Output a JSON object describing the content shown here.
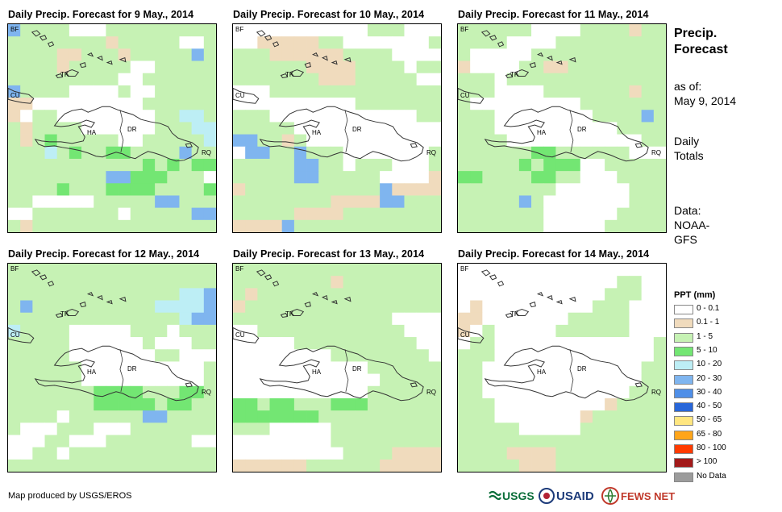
{
  "panels": [
    {
      "title": "Daily Precip. Forecast for 9 May., 2014"
    },
    {
      "title": "Daily Precip. Forecast for 10 May., 2014"
    },
    {
      "title": "Daily Precip. Forecast for 11 May., 2014"
    },
    {
      "title": "Daily Precip. Forecast for 12 May., 2014"
    },
    {
      "title": "Daily Precip. Forecast for 13 May., 2014"
    },
    {
      "title": "Daily Precip. Forecast for 14 May., 2014"
    }
  ],
  "map_labels": {
    "bf": "BF",
    "tk": "TK",
    "cu": "CU",
    "ha": "HA",
    "dr": "DR",
    "rq": "RQ"
  },
  "side": {
    "title_line1": "Precip.",
    "title_line2": "Forecast",
    "asof_line1": "as of:",
    "asof_line2": "May 9, 2014",
    "totals_line1": "Daily",
    "totals_line2": "Totals",
    "data_line1": "Data:",
    "data_line2": "NOAA-",
    "data_line3": "GFS"
  },
  "legend": {
    "title": "PPT (mm)",
    "items": [
      {
        "label": "0 - 0.1",
        "color": "#ffffff"
      },
      {
        "label": "0.1 - 1",
        "color": "#f0dbbd"
      },
      {
        "label": "1 - 5",
        "color": "#c6f2b4"
      },
      {
        "label": "5 - 10",
        "color": "#73e673"
      },
      {
        "label": "10 - 20",
        "color": "#bdeef5"
      },
      {
        "label": "20 - 30",
        "color": "#7fb5ef"
      },
      {
        "label": "30 - 40",
        "color": "#4f8fe8"
      },
      {
        "label": "40 - 50",
        "color": "#2866d9"
      },
      {
        "label": "50 - 65",
        "color": "#ffe680"
      },
      {
        "label": "65 - 80",
        "color": "#ffa51a"
      },
      {
        "label": "80 - 100",
        "color": "#ff3b00"
      },
      {
        "label": "> 100",
        "color": "#a31a1a"
      },
      {
        "label": "No Data",
        "color": "#9c9c9c"
      }
    ]
  },
  "credit": "Map produced by USGS/EROS",
  "logos": {
    "usgs": "USGS",
    "usaid": "USAID",
    "fewsnet": "FEWS NET"
  },
  "grids": [
    "BGGGGWWWGGGGGGGGGGGGGGGGGTGGGGGWWGGGGGTTGGGTGGGGGBGGGGGTGGGGGWWGGGGGGGGGGGGGGWWGGGGGGBGGGGWWWWGWWGGGGGTTWWWWWWWWWGGGGGGTWGGWWWWWWWWGGCCGGTGGGGWWWWWWGGGCCGTGMGGGGGWWGGGGGCGGGCGMGGMMGGGGBGGGGGGGGGGGGGMGMGMMGGGGGGGGBBMMMGGGWGGGGMGGGMMMMGGGGMGGWWWWWGGGGGBBGGGWWGGGGGGGWGGGGGBBGTGGGGGGGGGGGGGGGGGGGGGGGGGMGGGGMMMGGGMMMGGGGTGTGGGGGGGGGGGGGG",
    "WWWWWWWWWWWGGGWWWWWTTTTTGGWWWWWWWGGGGTTTTTTGGGGWWWWGGGGGGTTTTGGGGWGGGGGGGGGTTTGGGGGWWWWWGGGGGGGGGGGGGGWWWWWWWWWWGGGGGGGGGGWWWWWWWWWWWWGGGGGGGWWWWWWWWWWWWBBGGTGWWWWWWWWWWWWBBGGBGGGWWWWWWWGGGGGGBBGGWGGGWWWGGGGGGBBGGGGGWWWWTTGGGGGGGGGGGBTTTTGGGGGGGGTTTTBBGGGGGGGGTTTTGGGGGGGGTTTTBGGGGGGGGGGGGGGGGTGGGGBGGGGGGGGGGGGGGTGGBGGGGGGGGG",
    "GGGGGGWWWWGGGGTGGGGGGWWWWGGGGGGGGGGWWWWWGGGGGGGGGGGTWWWWGGTTGGGGGGGGGGGWGGGGGGGGGGGGGGGGWWWWGGGGGGGTGGGWWWWWWWWWGGGGGGGGGGWWWWWWWWGGGGBGGGGWWWWWWWWWWGGGGGGGGWWWWWWWWWWWGGGGGGGGMMGGGGGGWWWGGGGGMGMMMWWGGGGGMMGGGGMMGGWWWGGGGGGGGGGGGWWWWWWGGGGGGGGBGWWWWWWWGGGGGGGGGGWWWWWWGGGGGGGGGGGWWWWWGGGGGGTGGGGWWWWWWGGGGGGGGGWWWWWWGGGGGGGGGGGWWWWWGGGGGGGGG",
    "GGGGGGGGGGGGGGGGGGGGGGGGGGGGGGGGGGGGGGGGGGGGGGGGCCBGBGGGGGGGGGGCCCCBGGGGGGGGGGGGGGCBBCGGGGWWWWWGGGWGGGGGGGGWWWWWWGWWWGGGGGGGWWWWWWWGGWWWGGGGGGWWWWWWWWWWGGGGGGGWWWWWWWWWWGGGGGGGGMMMMGGGMMGGGGGGGGMMMMMGMMGGGGGGWGGGGGGBBGGGGGWWWGGGWWWGGGGGGGWWWGGWWWGGGGGGGWWWWGGWGGGGGGGGGGGGGGGGGGGGGGGGGGGGGGGGGGGGGGGGGGGGGGGGGGGGGGGGGGGGGGGGGGGGG",
    "GGGGGGGGGGGGGGGGGGGGGGGGGTGGGGGGGGGTGGGGGGGGGGGGGGGTGGGGGGGGGGGGGGGGGGGGGGGGGGGGGWWWWWWGGGGGGGGGGGGWWWWWWWWGGGGGGGGGGWWWWWWWWWWGGGGGGGGWWWWWWWWWWWWGGGGGGWWWWWWWWWWWWGGGGGWWWWWWWWWWWGGGGGGMMGMMGGGMMMGGGGGGMMMMMMMGGGGGGGGGGGGGWWWWWGGGGGGGGGWWWWWWWWGGGGGGGGGWWWWWWWWWGGGGTTTTTTTTTTGGGGGGTTTTTTTTTTTTTGGGGTTTTTTTTTTTTTTTGGTTTTTTTTTTTTTTTTT",
    "WWWWWWWWWWWWWWWWWWWWWWWWWWWWWWGGWWWWWWWWWWWWWWGGGWWWTWWWWWWWWWGGGWWWTTWWWWWWWGGGGGWWWTWGWWWWWGGGGGGWWWWGGWWWWWWWWWWWWWGGGGWWWWWWWWWWWWWGGGWWWWWWWWWWWWWGGGGWWWWWWWWWWWWWGGGGWWWWWWWWWWWWGGGGGGWWWWWWWWWTGGGGGGGWWWWWWWTGGGGGGGGGGGWWWWWGGGGGGGGGGGGGGGGGGGGGGGGGGGGTTTTGGGGGGGGGGGGGGTTTGGGGGGGGGGGGGGGGGGGGGGGGGGGGGGGGGGGGGGGGGGGGGGG"
  ]
}
